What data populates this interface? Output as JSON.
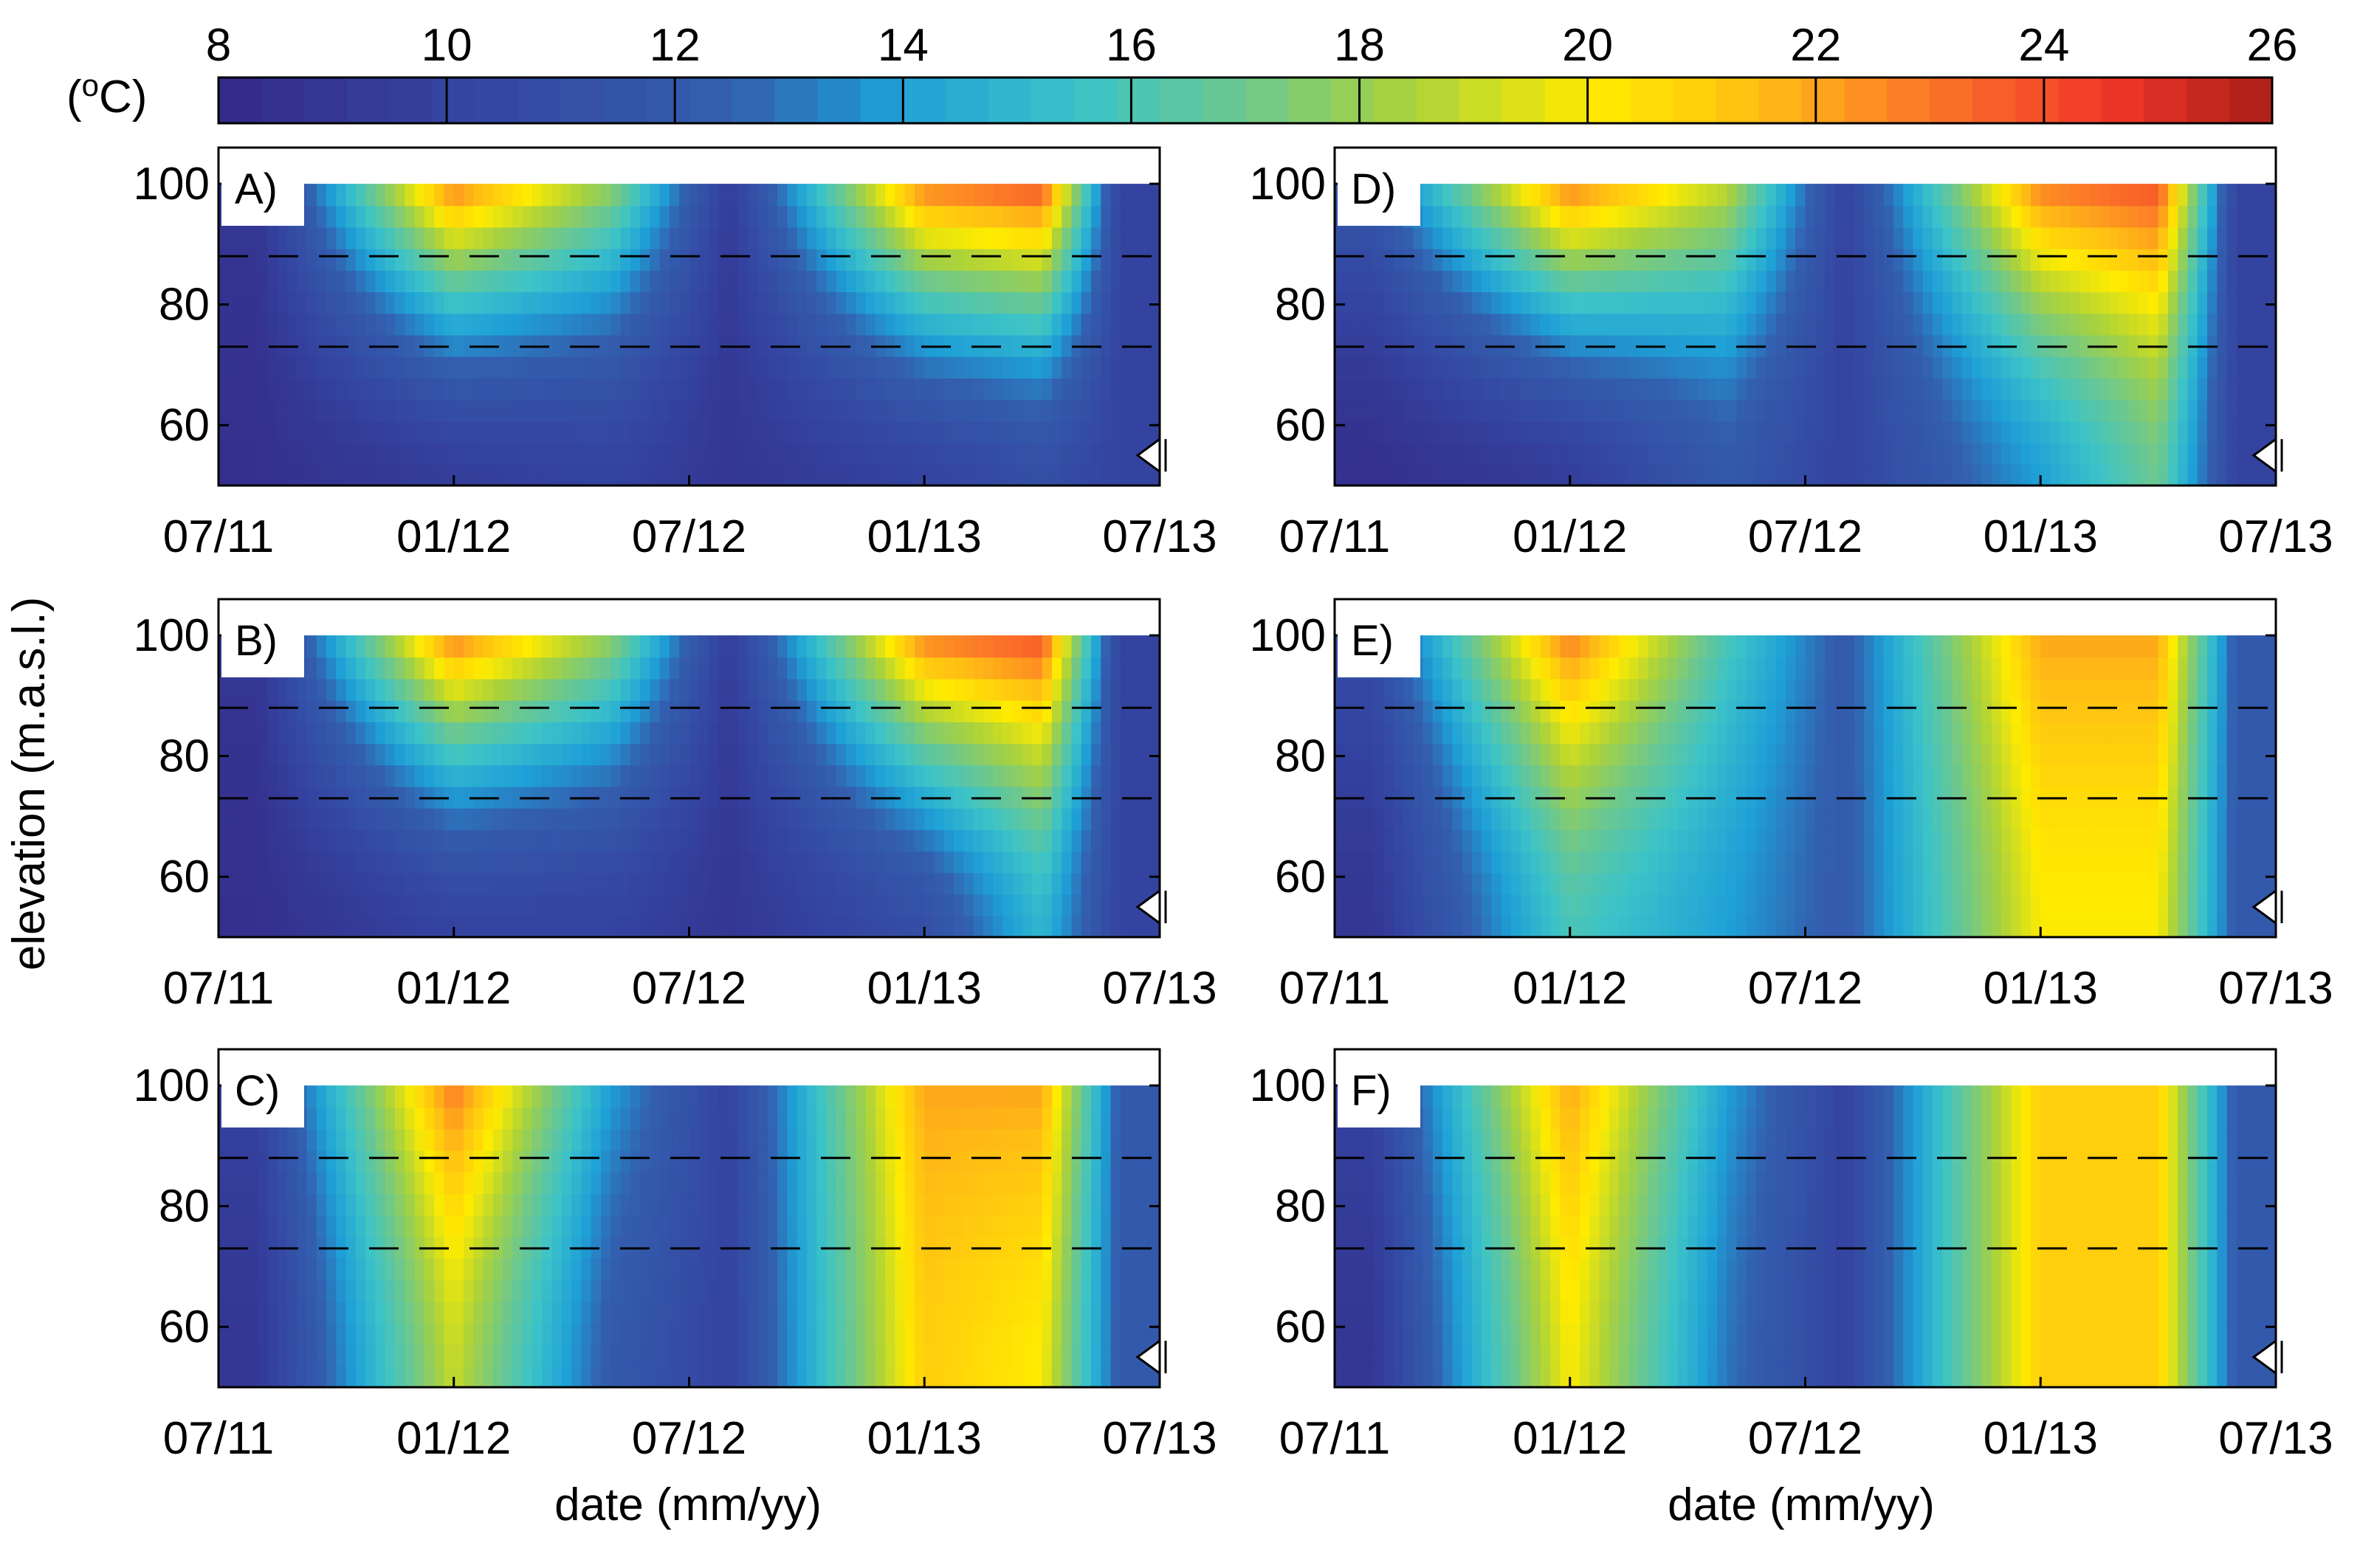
{
  "colorbar": {
    "unit_base": "(",
    "unit_sup": "o",
    "unit_tail": "C)",
    "ticks": [
      "8",
      "10",
      "12",
      "14",
      "16",
      "18",
      "20",
      "22",
      "24",
      "26"
    ],
    "range": [
      8,
      26
    ]
  },
  "xlabel": "date (mm/yy)",
  "ylabel": "elevation (m.a.s.l.)",
  "chart_data": [
    {
      "type": "heatmap",
      "panel": "A)",
      "xlabel": "date (mm/yy)",
      "ylabel": "elevation (m.a.s.l.)",
      "x_ticks": [
        "07/11",
        "01/12",
        "07/12",
        "01/13",
        "07/13"
      ],
      "y_ticks": [
        60,
        80,
        100
      ],
      "ylim": [
        50,
        106
      ],
      "colorbar_range": [
        8,
        26
      ],
      "reference_lines_elevation": [
        88,
        73
      ],
      "marker_elevation": 55,
      "temperature_summary": [
        {
          "period": "07/11-09/11",
          "surface": 9,
          "bottom": 8.5
        },
        {
          "period": "01/12",
          "surface": 23,
          "bottom": 9.5
        },
        {
          "period": "05/12",
          "surface": 18,
          "bottom": 10
        },
        {
          "period": "07/12-09/12",
          "surface": 9.5,
          "bottom": 9
        },
        {
          "period": "01/13",
          "surface": 23,
          "bottom": 10
        },
        {
          "period": "04/13",
          "surface": 24,
          "bottom": 11
        },
        {
          "period": "06/13",
          "surface": 10,
          "bottom": 10
        }
      ]
    },
    {
      "type": "heatmap",
      "panel": "B)",
      "xlabel": "date (mm/yy)",
      "ylabel": "elevation (m.a.s.l.)",
      "x_ticks": [
        "07/11",
        "01/12",
        "07/12",
        "01/13",
        "07/13"
      ],
      "y_ticks": [
        60,
        80,
        100
      ],
      "ylim": [
        50,
        106
      ],
      "colorbar_range": [
        8,
        26
      ],
      "reference_lines_elevation": [
        88,
        73
      ],
      "marker_elevation": 55,
      "temperature_summary": [
        {
          "period": "07/11-09/11",
          "surface": 9,
          "bottom": 8.5
        },
        {
          "period": "01/12",
          "surface": 23,
          "bottom": 10
        },
        {
          "period": "05/12",
          "surface": 18,
          "bottom": 10
        },
        {
          "period": "07/12-09/12",
          "surface": 9.5,
          "bottom": 9
        },
        {
          "period": "01/13",
          "surface": 23,
          "bottom": 11
        },
        {
          "period": "04/13",
          "surface": 24,
          "bottom": 15
        },
        {
          "period": "06/13",
          "surface": 10,
          "bottom": 10
        }
      ]
    },
    {
      "type": "heatmap",
      "panel": "C)",
      "xlabel": "date (mm/yy)",
      "ylabel": "elevation (m.a.s.l.)",
      "x_ticks": [
        "07/11",
        "01/12",
        "07/12",
        "01/13",
        "07/13"
      ],
      "y_ticks": [
        60,
        80,
        100
      ],
      "ylim": [
        50,
        106
      ],
      "colorbar_range": [
        8,
        26
      ],
      "reference_lines_elevation": [
        88,
        73
      ],
      "marker_elevation": 55,
      "temperature_summary": [
        {
          "period": "07/11-09/11",
          "surface": 10,
          "bottom": 9
        },
        {
          "period": "01/12",
          "surface": 23,
          "bottom": 19
        },
        {
          "period": "05/12",
          "surface": 14,
          "bottom": 12
        },
        {
          "period": "07/12-09/12",
          "surface": 10,
          "bottom": 10
        },
        {
          "period": "01/13",
          "surface": 22,
          "bottom": 21
        },
        {
          "period": "04/13",
          "surface": 22,
          "bottom": 20
        },
        {
          "period": "06/13",
          "surface": 12,
          "bottom": 12
        }
      ]
    },
    {
      "type": "heatmap",
      "panel": "D)",
      "xlabel": "date (mm/yy)",
      "ylabel": "elevation (m.a.s.l.)",
      "x_ticks": [
        "07/11",
        "01/12",
        "07/12",
        "01/13",
        "07/13"
      ],
      "y_ticks": [
        60,
        80,
        100
      ],
      "ylim": [
        50,
        106
      ],
      "colorbar_range": [
        8,
        26
      ],
      "reference_lines_elevation": [
        88,
        73
      ],
      "marker_elevation": 55,
      "temperature_summary": [
        {
          "period": "07/11-09/11",
          "surface": 12,
          "bottom": 8.5
        },
        {
          "period": "01/12",
          "surface": 23,
          "bottom": 9.5
        },
        {
          "period": "05/12",
          "surface": 19,
          "bottom": 12
        },
        {
          "period": "07/12-09/12",
          "surface": 10,
          "bottom": 10
        },
        {
          "period": "01/13",
          "surface": 23,
          "bottom": 14
        },
        {
          "period": "04/13",
          "surface": 24,
          "bottom": 17
        },
        {
          "period": "06/13",
          "surface": 10,
          "bottom": 10
        }
      ]
    },
    {
      "type": "heatmap",
      "panel": "E)",
      "xlabel": "date (mm/yy)",
      "ylabel": "elevation (m.a.s.l.)",
      "x_ticks": [
        "07/11",
        "01/12",
        "07/12",
        "01/13",
        "07/13"
      ],
      "y_ticks": [
        60,
        80,
        100
      ],
      "ylim": [
        50,
        106
      ],
      "colorbar_range": [
        8,
        26
      ],
      "reference_lines_elevation": [
        88,
        73
      ],
      "marker_elevation": 55,
      "temperature_summary": [
        {
          "period": "07/11-09/11",
          "surface": 11,
          "bottom": 9
        },
        {
          "period": "01/12",
          "surface": 23,
          "bottom": 16
        },
        {
          "period": "05/12",
          "surface": 16,
          "bottom": 14
        },
        {
          "period": "07/12-09/12",
          "surface": 12,
          "bottom": 12
        },
        {
          "period": "01/13",
          "surface": 22,
          "bottom": 20
        },
        {
          "period": "04/13",
          "surface": 22,
          "bottom": 20
        },
        {
          "period": "06/13",
          "surface": 12,
          "bottom": 12
        }
      ]
    },
    {
      "type": "heatmap",
      "panel": "F)",
      "xlabel": "date (mm/yy)",
      "ylabel": "elevation (m.a.s.l.)",
      "x_ticks": [
        "07/11",
        "01/12",
        "07/12",
        "01/13",
        "07/13"
      ],
      "y_ticks": [
        60,
        80,
        100
      ],
      "ylim": [
        50,
        106
      ],
      "colorbar_range": [
        8,
        26
      ],
      "reference_lines_elevation": [
        88,
        73
      ],
      "marker_elevation": 55,
      "temperature_summary": [
        {
          "period": "07/11-09/11",
          "surface": 10,
          "bottom": 9
        },
        {
          "period": "01/12",
          "surface": 22,
          "bottom": 20
        },
        {
          "period": "05/12",
          "surface": 14,
          "bottom": 13
        },
        {
          "period": "07/12-09/12",
          "surface": 10,
          "bottom": 10
        },
        {
          "period": "01/13",
          "surface": 21,
          "bottom": 21
        },
        {
          "period": "04/13",
          "surface": 21,
          "bottom": 21
        },
        {
          "period": "06/13",
          "surface": 12,
          "bottom": 12
        }
      ]
    }
  ]
}
